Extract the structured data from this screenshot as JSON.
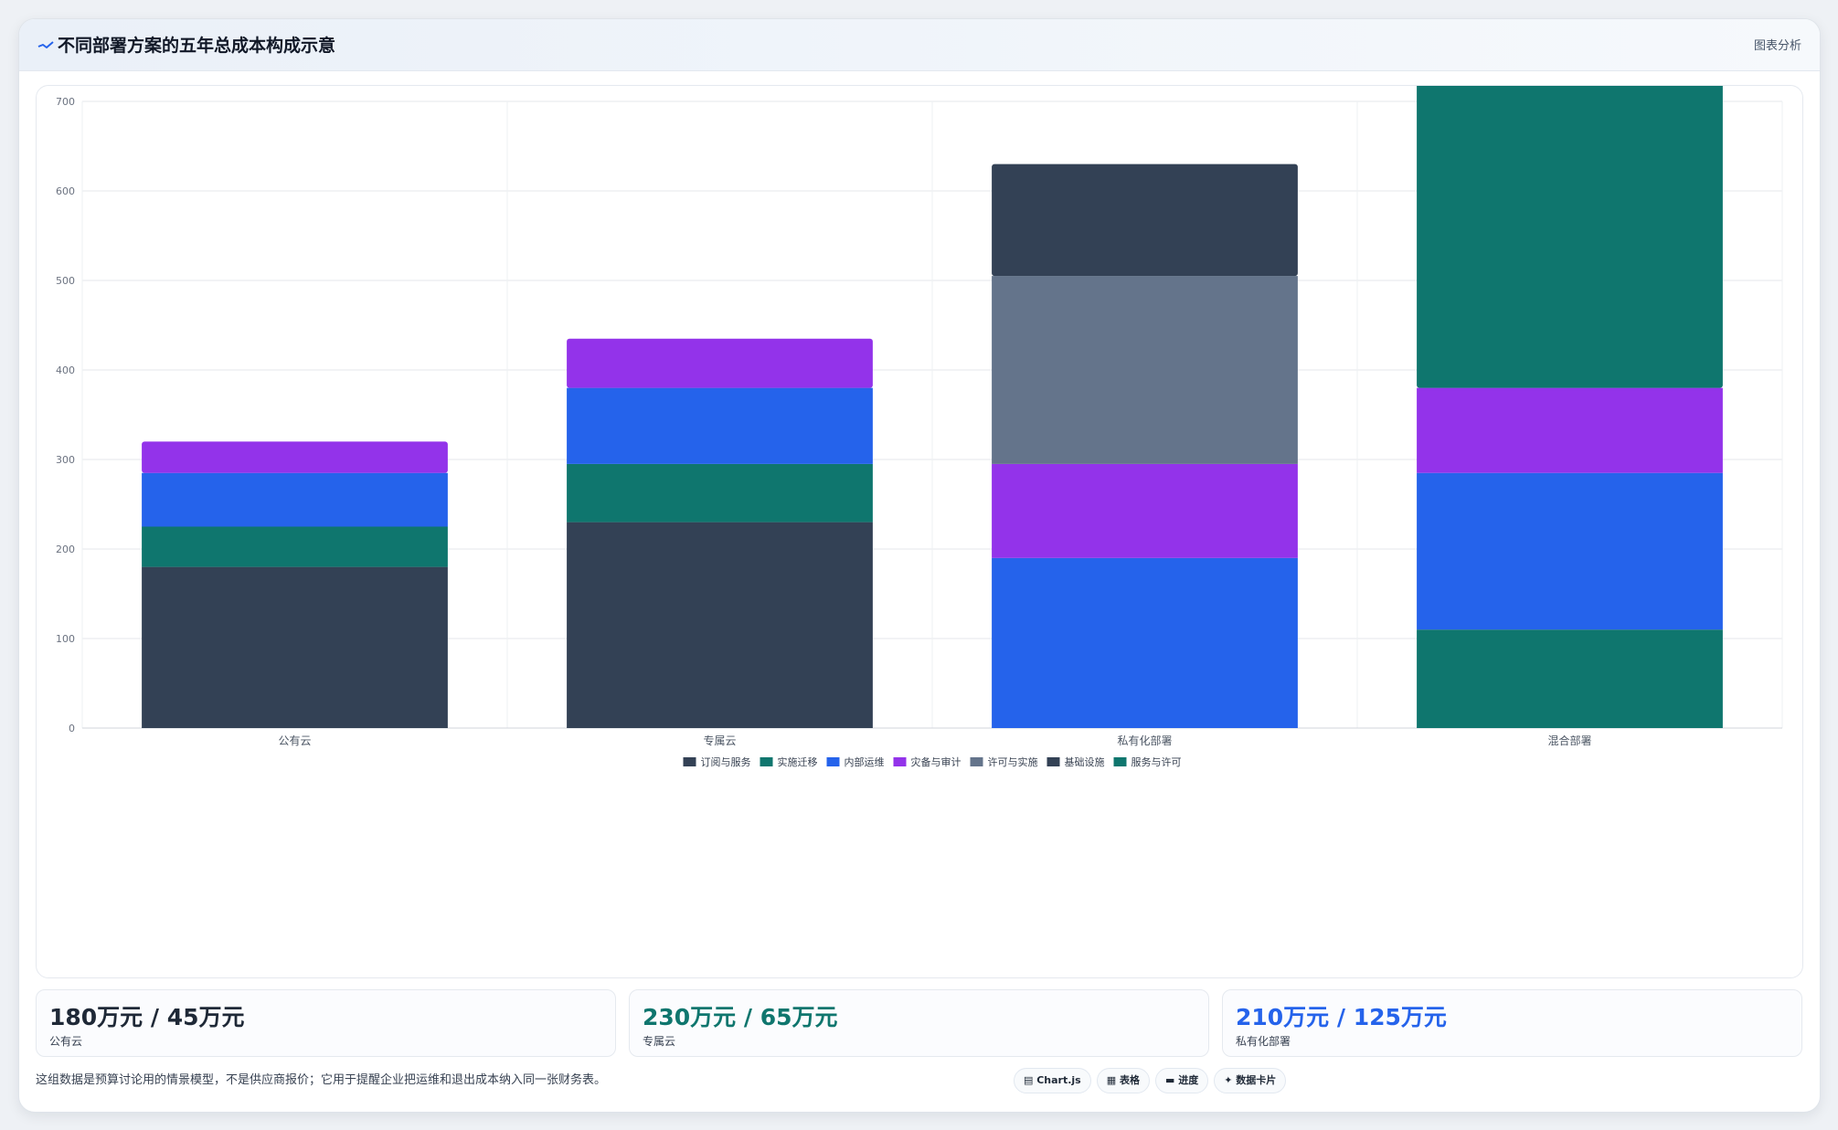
{
  "header": {
    "icon": "line-chart-icon",
    "title": "不同部署方案的五年总成本构成示意",
    "right_label": "图表分析"
  },
  "chart_data": {
    "type": "bar",
    "stacked": true,
    "categories": [
      "公有云",
      "专属云",
      "私有化部署",
      "混合部署"
    ],
    "ylim": [
      0,
      700
    ],
    "yticks": [
      0,
      100,
      200,
      300,
      400,
      500,
      600,
      700
    ],
    "grid": true,
    "legend_position": "bottom",
    "series": [
      {
        "name": "订阅与服务",
        "color": "#334155",
        "values": [
          180,
          230,
          0,
          0
        ]
      },
      {
        "name": "实施迁移",
        "color": "#0f766e",
        "values": [
          45,
          65,
          0,
          0
        ]
      },
      {
        "name": "内部运维",
        "color": "#2563eb",
        "values": [
          60,
          85,
          190,
          175
        ]
      },
      {
        "name": "灾备与审计",
        "color": "#9333ea",
        "values": [
          35,
          55,
          105,
          95
        ]
      },
      {
        "name": "许可与实施",
        "color": "#64748b",
        "values": [
          0,
          0,
          210,
          0
        ]
      },
      {
        "name": "基础设施",
        "color": "#334155",
        "values": [
          0,
          0,
          125,
          0
        ]
      },
      {
        "name": "服务与许可",
        "color": "#0f766e",
        "values": [
          0,
          0,
          0,
          355
        ]
      }
    ],
    "base_values": [
      0,
      0,
      0,
      110
    ],
    "base_color": "#0f766e"
  },
  "stats": [
    {
      "value": "180万元 / 45万元",
      "label": "公有云",
      "color": "#1f2937"
    },
    {
      "value": "230万元 / 65万元",
      "label": "专属云",
      "color": "#0f766e"
    },
    {
      "value": "210万元 / 125万元",
      "label": "私有化部署",
      "color": "#2563eb"
    }
  ],
  "footer": {
    "note": "这组数据是预算讨论用的情景模型，不是供应商报价；它用于提醒企业把运维和退出成本纳入同一张财务表。",
    "pills": [
      "▤ Chart.js",
      "▦ 表格",
      "▬ 进度",
      "✦ 数据卡片"
    ]
  }
}
